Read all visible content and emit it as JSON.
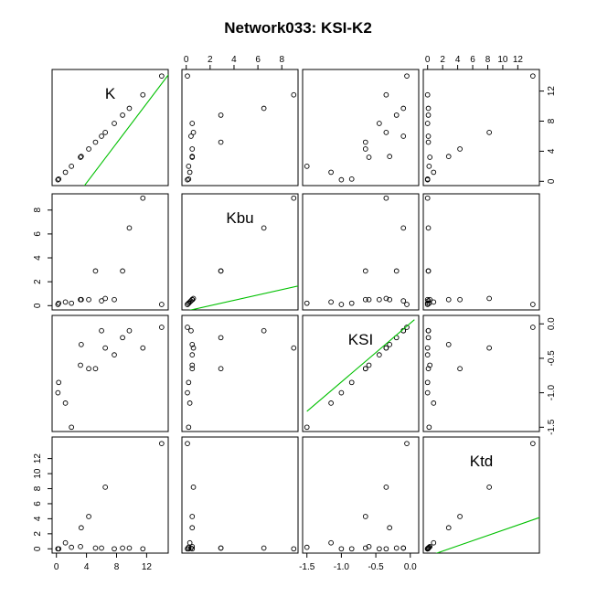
{
  "chart_data": {
    "type": "scatter",
    "subtype": "scatterplot-matrix",
    "title": "Network033: KSI-K2",
    "variables": [
      {
        "name": "K",
        "range": [
          0,
          14.3
        ],
        "ticks": [
          0,
          4,
          8,
          12
        ],
        "tick_labels": [
          "0",
          "4",
          "8",
          "12"
        ]
      },
      {
        "name": "Kbu",
        "range": [
          0,
          9.0
        ],
        "ticks": [
          0,
          2,
          4,
          6,
          8
        ],
        "tick_labels": [
          "0",
          "2",
          "4",
          "6",
          "8"
        ]
      },
      {
        "name": "KSI",
        "range": [
          -1.5,
          0.06
        ],
        "ticks": [
          -1.5,
          -1.0,
          -0.5,
          0.0
        ],
        "tick_labels": [
          "-1.5",
          "-1.0",
          "-0.5",
          "0.0"
        ]
      },
      {
        "name": "Ktd",
        "range": [
          0,
          14.3
        ],
        "ticks": [
          0,
          2,
          4,
          6,
          8,
          10,
          12
        ],
        "tick_labels": [
          "0",
          "2",
          "4",
          "6",
          "8",
          "10",
          "12"
        ]
      }
    ],
    "columns": {
      "K": [
        0.2,
        2.0,
        0.3,
        14.0,
        1.2,
        3.3,
        4.3,
        6.5,
        7.7,
        11.5,
        3.2,
        6.0,
        5.2,
        8.8,
        9.7
      ],
      "Kbu": [
        0.1,
        0.2,
        0.2,
        0.1,
        0.3,
        0.5,
        0.5,
        0.6,
        0.5,
        9.0,
        0.5,
        0.4,
        2.9,
        2.9,
        6.5
      ],
      "KSI": [
        -1.0,
        -1.5,
        -0.85,
        -0.05,
        -1.15,
        -0.3,
        -0.65,
        -0.35,
        -0.45,
        -0.35,
        -0.6,
        -0.1,
        -0.65,
        -0.2,
        -0.1
      ],
      "Ktd": [
        0.0,
        0.2,
        0.0,
        14.0,
        0.8,
        2.8,
        4.3,
        8.2,
        0.0,
        0.0,
        0.3,
        0.1,
        0.1,
        0.1,
        0.1
      ]
    },
    "diagonal_fit_lines": {
      "K": [
        [
          0,
          -5.5
        ],
        [
          15,
          14.3
        ]
      ],
      "Kbu": [
        [
          0,
          -0.45
        ],
        [
          15,
          2.9
        ]
      ],
      "KSI": [
        [
          -1.5,
          -1.27
        ],
        [
          0.06,
          0.06
        ]
      ],
      "Ktd": [
        [
          0,
          -1.0
        ],
        [
          15,
          4.2
        ]
      ]
    },
    "line_color": "#00c000",
    "point_style": "open-circle",
    "grid": false,
    "legend": "none",
    "axis_layout": {
      "top": [
        "Kbu",
        "Ktd"
      ],
      "bottom": [
        "K",
        "KSI"
      ],
      "left": [
        "Kbu",
        "Ktd"
      ],
      "right": [
        "K",
        "KSI"
      ]
    }
  }
}
